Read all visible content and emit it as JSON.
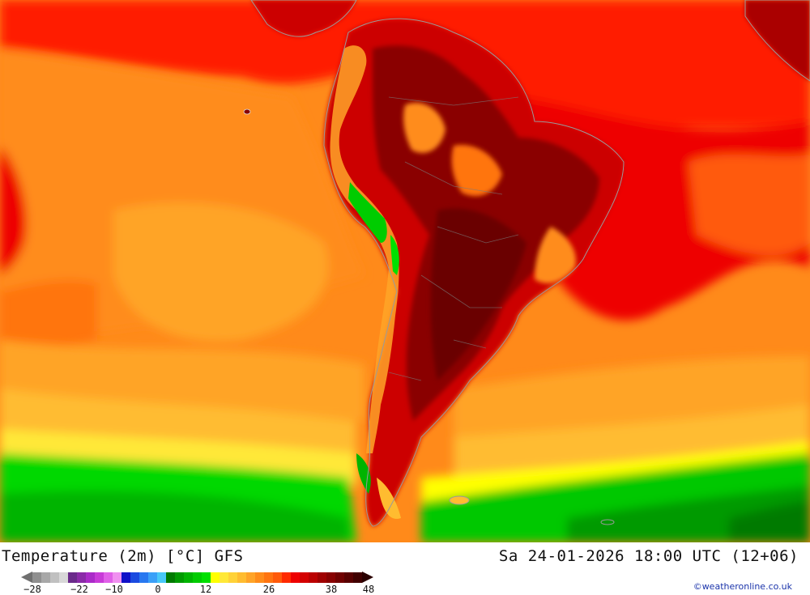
{
  "map": {
    "variable": "Temperature (2m)",
    "unit": "°C",
    "model": "GFS",
    "valid_time": "Sa 24-01-2026 18:00 UTC (12+06)",
    "region": "South America"
  },
  "header": {
    "title_left": "Temperature (2m) [°C] GFS",
    "title_right": "Sa 24-01-2026 18:00 UTC (12+06)"
  },
  "legend": {
    "tick_labels": [
      "-28",
      "-22",
      "-10",
      "0",
      "12",
      "26",
      "38",
      "48"
    ],
    "colors": [
      "#909090",
      "#a8a8a8",
      "#c0c0c0",
      "#d8d8d8",
      "#6a2a8a",
      "#8a2aa8",
      "#aa2ac8",
      "#c83ad8",
      "#e060e8",
      "#f090f0",
      "#1010c8",
      "#1a4ae0",
      "#2878f0",
      "#3aa0f8",
      "#48c8f8",
      "#007a00",
      "#009a00",
      "#00b400",
      "#00cc00",
      "#00e000",
      "#ffff00",
      "#ffe838",
      "#ffd238",
      "#ffbc30",
      "#ffa428",
      "#ff8c1a",
      "#ff7410",
      "#ff5a0a",
      "#ff2a00",
      "#ee0000",
      "#d40000",
      "#bb0000",
      "#a00000",
      "#880000",
      "#700000",
      "#580000",
      "#400000"
    ],
    "low_arrow_color": "#707070",
    "high_arrow_color": "#2a0000"
  },
  "credit": "©weatheronline.co.uk"
}
